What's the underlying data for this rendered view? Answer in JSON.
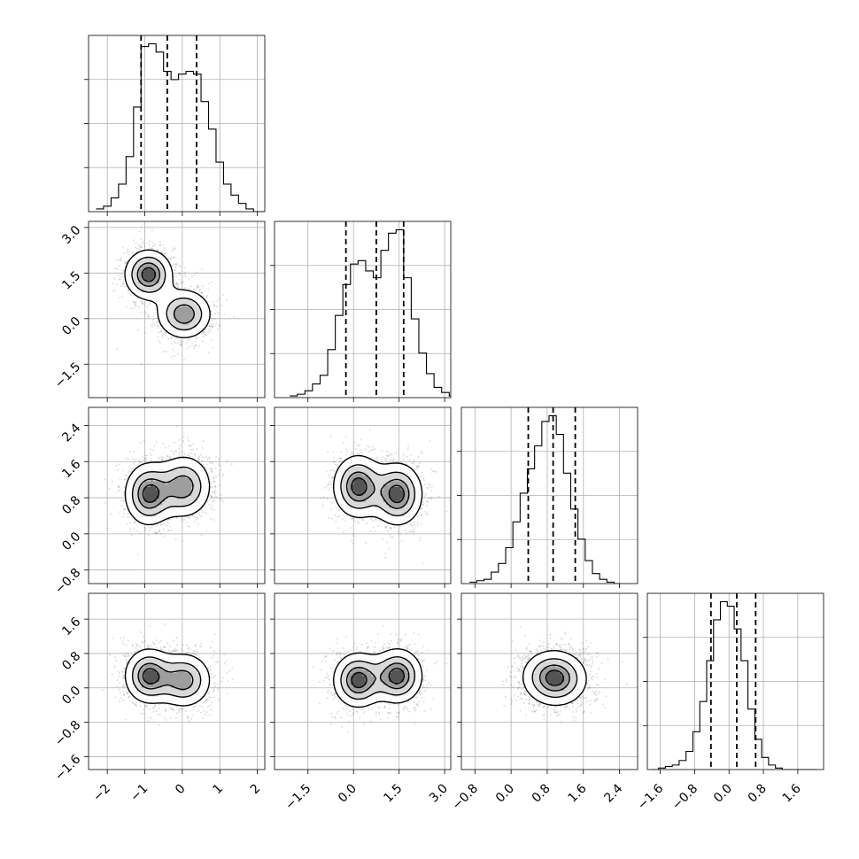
{
  "chart_data": {
    "type": "corner",
    "title": "",
    "parameters": 4,
    "axis_ranges": [
      [
        -2.5,
        2.2
      ],
      [
        -2.6,
        3.2
      ],
      [
        -1.1,
        2.8
      ],
      [
        -1.9,
        2.2
      ]
    ],
    "ticks": [
      {
        "values": [
          -2,
          -1,
          0,
          1,
          2
        ],
        "labels": [
          "−2",
          "−1",
          "0",
          "1",
          "2"
        ]
      },
      {
        "values": [
          -1.5,
          0.0,
          1.5,
          3.0
        ],
        "labels": [
          "−1.5",
          "0.0",
          "1.5",
          "3.0"
        ]
      },
      {
        "values": [
          -0.8,
          0.0,
          0.8,
          1.6,
          2.4
        ],
        "labels": [
          "−0.8",
          "0.0",
          "0.8",
          "1.6",
          "2.4"
        ]
      },
      {
        "values": [
          -1.6,
          -0.8,
          0.0,
          0.8,
          1.6
        ],
        "labels": [
          "−1.6",
          "−0.8",
          "0.0",
          "0.8",
          "1.6"
        ]
      }
    ],
    "quantiles": [
      [
        -1.1,
        -0.4,
        0.38
      ],
      [
        -0.25,
        0.75,
        1.65
      ],
      [
        0.38,
        0.93,
        1.42
      ],
      [
        -0.42,
        0.18,
        0.62
      ]
    ],
    "marginal_histograms": [
      {
        "bin_start": -2.3,
        "bin_width": 0.2,
        "counts": [
          1,
          2,
          5,
          10,
          20,
          38,
          60,
          61,
          58,
          51,
          48,
          50,
          51,
          50,
          40,
          30,
          18,
          10,
          6,
          3,
          1,
          0,
          0
        ]
      },
      {
        "bin_start": -2.1,
        "bin_width": 0.25,
        "counts": [
          1,
          2,
          4,
          8,
          13,
          28,
          48,
          66,
          78,
          80,
          74,
          70,
          86,
          96,
          98,
          70,
          46,
          26,
          14,
          6,
          3,
          1
        ]
      },
      {
        "bin_start": -0.92,
        "bin_width": 0.16,
        "counts": [
          1,
          2,
          3,
          8,
          14,
          25,
          43,
          63,
          80,
          96,
          113,
          117,
          104,
          77,
          52,
          31,
          16,
          7,
          3,
          1,
          0
        ]
      },
      {
        "bin_start": -1.8,
        "bin_width": 0.16,
        "counts": [
          0,
          1,
          2,
          3,
          6,
          12,
          25,
          45,
          72,
          99,
          111,
          108,
          93,
          72,
          40,
          20,
          8,
          3,
          1,
          0,
          0,
          0,
          0,
          0
        ]
      }
    ],
    "clusters": [
      {
        "mean": [
          -0.9,
          1.45,
          0.88,
          0.28
        ],
        "sd": [
          0.35,
          0.45,
          0.38,
          0.35
        ],
        "weight": 0.5
      },
      {
        "mean": [
          0.05,
          0.15,
          1.05,
          0.18
        ],
        "sd": [
          0.4,
          0.45,
          0.38,
          0.35
        ],
        "weight": 0.5
      }
    ]
  }
}
